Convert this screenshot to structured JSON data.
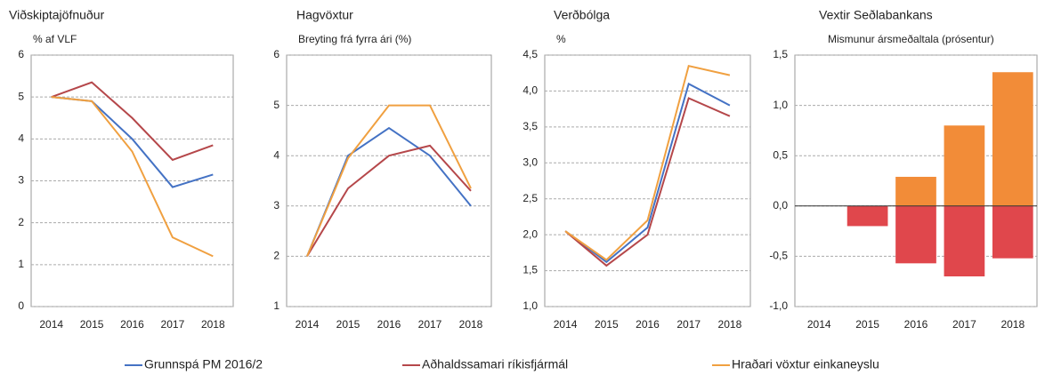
{
  "chart_data": [
    {
      "type": "line",
      "title": "Viðskiptajöfnuður",
      "subtitle": "% af VLF",
      "categories": [
        "2014",
        "2015",
        "2016",
        "2017",
        "2018"
      ],
      "ylim": [
        0,
        6
      ],
      "yticks": [
        0,
        1,
        2,
        3,
        4,
        5,
        6
      ],
      "grid": true,
      "series": [
        {
          "name": "Grunnspá PM 2016/2",
          "color": "#4472c4",
          "values": [
            5.0,
            4.9,
            4.0,
            2.85,
            3.15
          ]
        },
        {
          "name": "Aðhaldssamari ríkisfjármál",
          "color": "#b5474a",
          "values": [
            5.0,
            5.35,
            4.5,
            3.5,
            3.85
          ]
        },
        {
          "name": "Hraðari vöxtur einkaneyslu",
          "color": "#f0a040",
          "values": [
            5.0,
            4.9,
            3.7,
            1.65,
            1.2
          ]
        }
      ]
    },
    {
      "type": "line",
      "title": "Hagvöxtur",
      "subtitle": "Breyting frá fyrra ári (%)",
      "categories": [
        "2014",
        "2015",
        "2016",
        "2017",
        "2018"
      ],
      "ylim": [
        1,
        6
      ],
      "yticks": [
        1,
        2,
        3,
        4,
        5,
        6
      ],
      "grid": true,
      "series": [
        {
          "color": "#4472c4",
          "values": [
            2.0,
            4.0,
            4.55,
            4.0,
            3.0
          ]
        },
        {
          "color": "#b5474a",
          "values": [
            2.0,
            3.35,
            4.0,
            4.2,
            3.3
          ]
        },
        {
          "color": "#f0a040",
          "values": [
            2.0,
            3.95,
            5.0,
            5.0,
            3.35
          ]
        }
      ]
    },
    {
      "type": "line",
      "title": "Verðbólga",
      "subtitle": "%",
      "categories": [
        "2014",
        "2015",
        "2016",
        "2017",
        "2018"
      ],
      "ylim": [
        1,
        4.5
      ],
      "yticks": [
        {
          "value": 1,
          "label": "1,0"
        },
        {
          "value": 1.5,
          "label": "1,5"
        },
        {
          "value": 2,
          "label": "2,0"
        },
        {
          "value": 2.5,
          "label": "2,5"
        },
        {
          "value": 3,
          "label": "3,0"
        },
        {
          "value": 3.5,
          "label": "3,5"
        },
        {
          "value": 4,
          "label": "4,0"
        },
        {
          "value": 4.5,
          "label": "4,5"
        }
      ],
      "grid": true,
      "series": [
        {
          "color": "#4472c4",
          "values": [
            2.05,
            1.62,
            2.1,
            4.1,
            3.8
          ]
        },
        {
          "color": "#b5474a",
          "values": [
            2.05,
            1.57,
            2.0,
            3.9,
            3.65
          ]
        },
        {
          "color": "#f0a040",
          "values": [
            2.05,
            1.65,
            2.2,
            4.35,
            4.22
          ]
        }
      ]
    },
    {
      "type": "bar",
      "title": "Vextir Seðlabankans",
      "subtitle": "Mismunur ársmeðaltala (prósentur)",
      "categories": [
        "2014",
        "2015",
        "2016",
        "2017",
        "2018"
      ],
      "ylim": [
        -1,
        1.5
      ],
      "yticks": [
        {
          "value": -1,
          "label": "-1,0"
        },
        {
          "value": -0.5,
          "label": "-0,5"
        },
        {
          "value": 0,
          "label": "0,0"
        },
        {
          "value": 0.5,
          "label": "0,5"
        },
        {
          "value": 1,
          "label": "1,0"
        },
        {
          "value": 1.5,
          "label": "1,5"
        }
      ],
      "grid": true,
      "series": [
        {
          "color": "#e0474c",
          "values": [
            0,
            -0.2,
            -0.57,
            -0.7,
            -0.52
          ]
        },
        {
          "color": "#f28c38",
          "values": [
            0,
            0,
            0.29,
            0.8,
            1.33
          ]
        }
      ]
    }
  ]
}
